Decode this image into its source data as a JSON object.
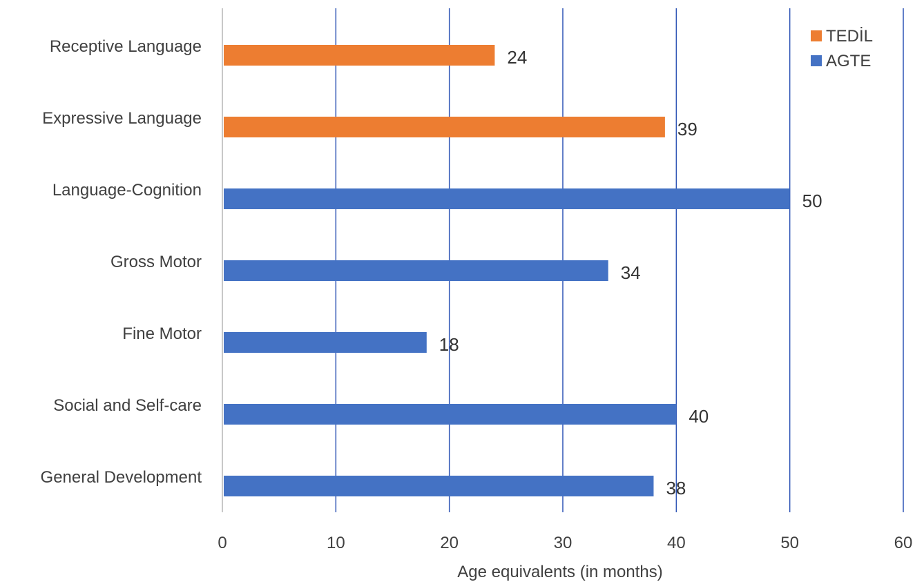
{
  "chart_data": {
    "type": "bar",
    "orientation": "horizontal",
    "categories": [
      "Receptive Language",
      "Expressive Language",
      "Language-Cognition",
      "Gross Motor",
      "Fine Motor",
      "Social and Self-care",
      "General Development"
    ],
    "values": [
      24,
      39,
      50,
      34,
      18,
      40,
      38
    ],
    "bar_series": [
      "TEDİL",
      "TEDİL",
      "AGTE",
      "AGTE",
      "AGTE",
      "AGTE",
      "AGTE"
    ],
    "series": [
      {
        "name": "TEDİL",
        "color": "#ed7d31"
      },
      {
        "name": "AGTE",
        "color": "#4472c4"
      }
    ],
    "xlabel": "Age equivalents (in months)",
    "ylabel": "",
    "xlim": [
      0,
      60
    ],
    "xticks": [
      0,
      10,
      20,
      30,
      40,
      50,
      60
    ],
    "grid": "vertical",
    "legend_position": "top-right"
  }
}
